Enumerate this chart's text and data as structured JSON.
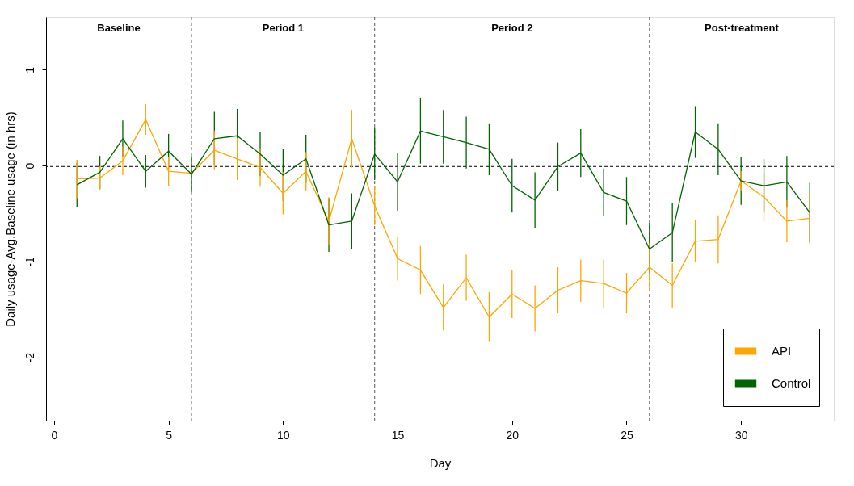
{
  "chart_data": {
    "type": "line",
    "xlabel": "Day",
    "ylabel": "Daily usage-Avg.Baseline usage (in hrs)",
    "x": [
      1,
      2,
      3,
      4,
      5,
      6,
      7,
      8,
      9,
      10,
      11,
      12,
      13,
      14,
      15,
      16,
      17,
      18,
      19,
      20,
      21,
      22,
      23,
      24,
      25,
      26,
      27,
      28,
      29,
      30,
      31,
      32,
      33
    ],
    "series": [
      {
        "name": "API",
        "color": "#ffa500",
        "values": [
          -0.14,
          -0.13,
          0.05,
          0.48,
          -0.06,
          -0.08,
          0.16,
          0.07,
          -0.02,
          -0.29,
          -0.06,
          -0.58,
          0.28,
          -0.42,
          -0.97,
          -1.09,
          -1.48,
          -1.17,
          -1.58,
          -1.34,
          -1.49,
          -1.3,
          -1.2,
          -1.23,
          -1.33,
          -1.06,
          -1.25,
          -0.79,
          -0.77,
          -0.16,
          -0.33,
          -0.58,
          -0.55
        ],
        "errors": [
          0.2,
          0.12,
          0.15,
          0.16,
          0.15,
          null,
          0.2,
          0.22,
          0.2,
          0.22,
          0.2,
          0.25,
          0.3,
          0.2,
          0.23,
          0.25,
          0.24,
          0.24,
          0.26,
          0.25,
          0.24,
          0.24,
          0.22,
          0.25,
          0.21,
          0.25,
          0.23,
          0.22,
          0.25,
          0.1,
          0.25,
          0.22,
          0.27
        ]
      },
      {
        "name": "Control",
        "color": "#006400",
        "values": [
          -0.2,
          -0.07,
          0.28,
          -0.06,
          0.15,
          -0.09,
          0.28,
          0.31,
          0.12,
          -0.1,
          0.07,
          -0.62,
          -0.58,
          0.12,
          -0.17,
          0.36,
          0.3,
          0.24,
          0.17,
          -0.21,
          -0.36,
          -0.01,
          0.13,
          -0.28,
          -0.37,
          -0.87,
          -0.7,
          0.35,
          0.17,
          -0.16,
          -0.21,
          -0.17,
          -0.49
        ],
        "errors": [
          0.23,
          0.17,
          0.19,
          0.17,
          0.18,
          0.19,
          0.28,
          0.28,
          0.23,
          0.27,
          0.25,
          0.28,
          0.29,
          0.27,
          0.3,
          0.34,
          0.28,
          0.27,
          0.27,
          0.28,
          0.29,
          0.25,
          0.25,
          0.25,
          0.25,
          0.27,
          0.31,
          0.27,
          0.27,
          0.25,
          0.28,
          0.27,
          0.31
        ]
      }
    ],
    "xlim": [
      -0.35,
      34.05
    ],
    "ylim": [
      -2.66,
      1.55
    ],
    "xticks": [
      0,
      5,
      10,
      15,
      20,
      25,
      30
    ],
    "yticks": [
      -2,
      -1,
      0,
      1
    ],
    "ref_lines": [
      {
        "axis": "x",
        "value": 6,
        "color": "#555555",
        "line_style": "dashed"
      },
      {
        "axis": "x",
        "value": 14,
        "color": "#555555",
        "line_style": "dashed"
      },
      {
        "axis": "x",
        "value": 26,
        "color": "#555555",
        "line_style": "dashed"
      },
      {
        "axis": "y",
        "value": -0.01,
        "color": "#000000",
        "line_style": "dashed"
      }
    ],
    "annotations": [
      "Baseline",
      "Period 1",
      "Period 2",
      "Post-treatment"
    ],
    "grid": false,
    "legend": "bottom right",
    "marker": "none",
    "line_style": "solid"
  }
}
